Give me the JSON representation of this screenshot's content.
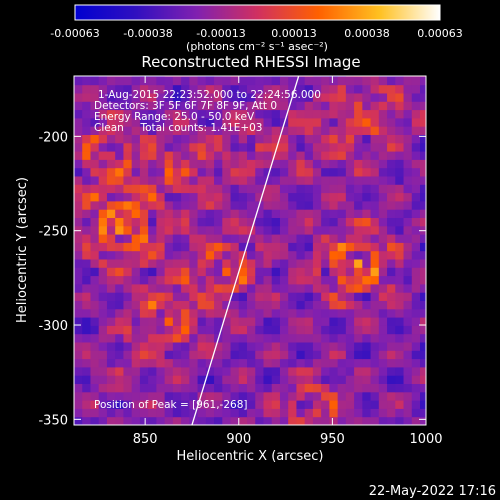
{
  "chart_data": {
    "type": "heatmap",
    "title": "Reconstructed RHESSI Image",
    "xlabel": "Heliocentric X (arcsec)",
    "ylabel": "Heliocentric Y (arcsec)",
    "xlim": [
      812,
      1000
    ],
    "ylim": [
      -353,
      -168
    ],
    "x_ticks": [
      850,
      900,
      950,
      1000
    ],
    "y_ticks": [
      -200,
      -250,
      -300,
      -350
    ],
    "colorbar": {
      "min": -0.00063,
      "max": 0.00063,
      "tick_labels": [
        "-0.00063",
        "-0.00038",
        "-0.00013",
        "0.00013",
        "0.00038",
        "0.00063"
      ],
      "unit_label": "(photons cm⁻² s⁻¹ asec⁻²)",
      "colors": [
        "#0000d0",
        "#3010c0",
        "#8020b0",
        "#d03060",
        "#ff6000",
        "#ffc020",
        "#ffffff"
      ]
    },
    "annotations": [
      "1-Aug-2015 22:23:52.000 to 22:24:56.000",
      "Detectors: 3F 5F 6F 7F 8F 9F, Att 0",
      "Energy Range: 25.0 - 50.0 keV",
      "Clean     Total counts: 1.41E+03"
    ],
    "peak_label": "Position of Peak = [961,-268]",
    "peak": [
      961,
      -268
    ],
    "sources": [
      {
        "x": 838,
        "y": -248,
        "amplitude": 0.00063
      },
      {
        "x": 963,
        "y": -268,
        "amplitude": 0.0006
      },
      {
        "x": 893,
        "y": -270,
        "amplitude": 0.00045
      },
      {
        "x": 862,
        "y": -297,
        "amplitude": 0.0004
      },
      {
        "x": 830,
        "y": -210,
        "amplitude": 0.0004
      },
      {
        "x": 873,
        "y": -217,
        "amplitude": 0.00035
      },
      {
        "x": 950,
        "y": -200,
        "amplitude": 0.00028
      },
      {
        "x": 975,
        "y": -185,
        "amplitude": 0.0003
      },
      {
        "x": 912,
        "y": -205,
        "amplitude": 0.00022
      },
      {
        "x": 940,
        "y": -345,
        "amplitude": 0.00035
      },
      {
        "x": 835,
        "y": -325,
        "amplitude": 0.00015
      }
    ],
    "limb_line": [
      [
        875,
        -353
      ],
      [
        932,
        -168
      ]
    ],
    "grid": false
  },
  "footer": {
    "date": "22-May-2022 17:16"
  }
}
